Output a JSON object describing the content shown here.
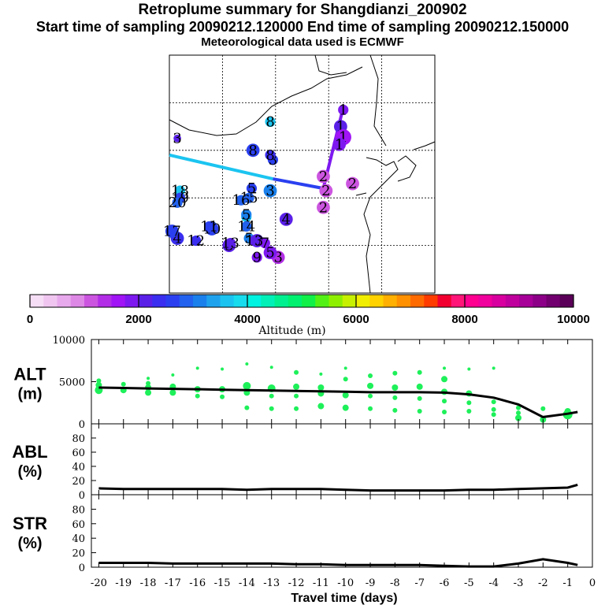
{
  "header": {
    "title": "Retroplume summary for Shangdianzi_200902",
    "sampling": "Start time of sampling 20090212.120000     End time of sampling 20090212.150000",
    "met": "Meteorological data used is ECMWF"
  },
  "colors": {
    "palette": [
      "#f6def6",
      "#f0c6f0",
      "#e8a9ec",
      "#de88e6",
      "#cc55e0",
      "#b22ee6",
      "#a014f5",
      "#7d19f0",
      "#5a20e8",
      "#3a2ef0",
      "#2a40f0",
      "#2262ee",
      "#1a80ec",
      "#1fa2ee",
      "#1bc4f0",
      "#17dced",
      "#00f2e0",
      "#00f0b8",
      "#00f090",
      "#00f070",
      "#10f048",
      "#52f014",
      "#8ef000",
      "#c6f000",
      "#f2ee00",
      "#ffd200",
      "#ffb000",
      "#ff9000",
      "#ff6a00",
      "#ff3c00",
      "#f20030",
      "#ff1478",
      "#ff0090",
      "#f0009c",
      "#d8009e",
      "#c0009c",
      "#a60098",
      "#8c0088",
      "#72006e",
      "#5a0058"
    ],
    "scatter": "#1ef05a",
    "line": "#000000"
  },
  "chart_data": [
    {
      "type": "map",
      "name": "retroplume-map",
      "note": "Plume centroid positions labelled by travel day, colored by altitude (m)",
      "grid_rows": 5,
      "grid_cols": 5,
      "points": [
        {
          "label": "1",
          "lon": 0.655,
          "lat": 0.77,
          "alt": 1900,
          "size": 2
        },
        {
          "label": "1",
          "lon": 0.645,
          "lat": 0.7,
          "alt": 2200,
          "size": 3
        },
        {
          "label": "1",
          "lon": 0.655,
          "lat": 0.655,
          "alt": 1700,
          "size": 4
        },
        {
          "label": "1",
          "lon": 0.64,
          "lat": 0.625,
          "alt": 1800,
          "size": 3
        },
        {
          "label": "2",
          "lon": 0.58,
          "lat": 0.49,
          "alt": 1200,
          "size": 3
        },
        {
          "label": "2",
          "lon": 0.69,
          "lat": 0.46,
          "alt": 1100,
          "size": 3
        },
        {
          "label": "2",
          "lon": 0.59,
          "lat": 0.43,
          "alt": 1000,
          "size": 3
        },
        {
          "label": "2",
          "lon": 0.58,
          "lat": 0.36,
          "alt": 1200,
          "size": 3
        },
        {
          "label": "3",
          "lon": 0.38,
          "lat": 0.43,
          "alt": 3000,
          "size": 3
        },
        {
          "label": "3",
          "lon": 0.39,
          "lat": 0.56,
          "alt": 2500,
          "size": 2
        },
        {
          "label": "3",
          "lon": 0.41,
          "lat": 0.15,
          "alt": 1300,
          "size": 3
        },
        {
          "label": "3",
          "lon": 0.03,
          "lat": 0.65,
          "alt": 2000,
          "size": 1
        },
        {
          "label": "3",
          "lon": 0.225,
          "lat": 0.2,
          "alt": 2000,
          "size": 3
        },
        {
          "label": "4",
          "lon": 0.44,
          "lat": 0.31,
          "alt": 2100,
          "size": 3
        },
        {
          "label": "4",
          "lon": 0.29,
          "lat": 0.32,
          "alt": 3500,
          "size": 2
        },
        {
          "label": "4",
          "lon": 0.03,
          "lat": 0.23,
          "alt": 2400,
          "size": 3
        },
        {
          "label": "5",
          "lon": 0.29,
          "lat": 0.33,
          "alt": 3200,
          "size": 2
        },
        {
          "label": "5",
          "lon": 0.3,
          "lat": 0.23,
          "alt": 3000,
          "size": 2
        },
        {
          "label": "5",
          "lon": 0.38,
          "lat": 0.17,
          "alt": 1900,
          "size": 3
        },
        {
          "label": "5",
          "lon": 0.31,
          "lat": 0.44,
          "alt": 2600,
          "size": 2
        },
        {
          "label": "6",
          "lon": 0.33,
          "lat": 0.22,
          "alt": 2000,
          "size": 3
        },
        {
          "label": "7",
          "lon": 0.36,
          "lat": 0.21,
          "alt": 1800,
          "size": 2
        },
        {
          "label": "8",
          "lon": 0.38,
          "lat": 0.58,
          "alt": 2300,
          "size": 2
        },
        {
          "label": "8",
          "lon": 0.315,
          "lat": 0.6,
          "alt": 2700,
          "size": 3
        },
        {
          "label": "8",
          "lon": 0.38,
          "lat": 0.72,
          "alt": 3600,
          "size": 2
        },
        {
          "label": "9",
          "lon": 0.33,
          "lat": 0.15,
          "alt": 1900,
          "size": 2
        },
        {
          "label": "9",
          "lon": 0.16,
          "lat": 0.28,
          "alt": 2800,
          "size": 2
        },
        {
          "label": "10",
          "lon": 0.16,
          "lat": 0.27,
          "alt": 2600,
          "size": 3
        },
        {
          "label": "11",
          "lon": 0.15,
          "lat": 0.28,
          "alt": 2700,
          "size": 2
        },
        {
          "label": "12",
          "lon": 0.1,
          "lat": 0.22,
          "alt": 2300,
          "size": 2
        },
        {
          "label": "13",
          "lon": 0.32,
          "lat": 0.22,
          "alt": 2000,
          "size": 2
        },
        {
          "label": "13",
          "lon": 0.23,
          "lat": 0.21,
          "alt": 2100,
          "size": 2
        },
        {
          "label": "14",
          "lon": 0.29,
          "lat": 0.28,
          "alt": 2800,
          "size": 2
        },
        {
          "label": "15",
          "lon": 0.3,
          "lat": 0.4,
          "alt": 2900,
          "size": 2
        },
        {
          "label": "16",
          "lon": 0.27,
          "lat": 0.39,
          "alt": 2800,
          "size": 2
        },
        {
          "label": "17",
          "lon": 0.01,
          "lat": 0.26,
          "alt": 2500,
          "size": 3
        },
        {
          "label": "18",
          "lon": 0.04,
          "lat": 0.43,
          "alt": 3700,
          "size": 2
        },
        {
          "label": "19",
          "lon": 0.04,
          "lat": 0.4,
          "alt": 2600,
          "size": 2
        },
        {
          "label": "20",
          "lon": 0.03,
          "lat": 0.38,
          "alt": 2800,
          "size": 2
        }
      ],
      "path": [
        {
          "lon": 0.655,
          "lat": 0.78,
          "alt": 1500
        },
        {
          "lon": 0.58,
          "lat": 0.44,
          "alt": 2000
        },
        {
          "lon": 0.39,
          "lat": 0.48,
          "alt": 3000
        },
        {
          "lon": 0.0,
          "lat": 0.58,
          "alt": 4000
        }
      ]
    },
    {
      "type": "colorbar",
      "name": "altitude-colorbar",
      "min": 0,
      "max": 10000,
      "steps": 40,
      "tick_labels": [
        "0",
        "2000",
        "4000",
        "6000",
        "8000",
        "10000"
      ],
      "label": "Altitude (m)"
    },
    {
      "type": "scatter+line",
      "name": "alt-panel",
      "ylabel": "ALT\n(m)",
      "ylim": [
        0,
        10000
      ],
      "yticks": [
        "0",
        "5000",
        "10000"
      ],
      "x": [
        -20,
        -19,
        -18,
        -17,
        -16,
        -15,
        -14,
        -13,
        -12,
        -11,
        -10,
        -9,
        -8,
        -7,
        -6,
        -5,
        -4,
        -3,
        -2,
        -1
      ],
      "line": {
        "x": [
          -20,
          -19,
          -18,
          -17,
          -16,
          -15,
          -14,
          -13,
          -12,
          -11,
          -10,
          -9,
          -8,
          -7,
          -6,
          -5,
          -4,
          -3,
          -2,
          -1,
          -0.6
        ],
        "y": [
          4300,
          4250,
          4200,
          4150,
          4100,
          4050,
          4000,
          3950,
          3900,
          3850,
          3800,
          3750,
          3750,
          3750,
          3700,
          3500,
          3100,
          2300,
          800,
          1200,
          1400
        ]
      },
      "scatter": [
        [
          -20,
          4000,
          5
        ],
        [
          -20,
          4600,
          4
        ],
        [
          -20,
          5100,
          3
        ],
        [
          -19,
          4000,
          4
        ],
        [
          -19,
          4700,
          3
        ],
        [
          -18,
          3700,
          4
        ],
        [
          -18,
          4300,
          4
        ],
        [
          -18,
          4800,
          3
        ],
        [
          -18,
          5400,
          2
        ],
        [
          -17,
          3700,
          4
        ],
        [
          -17,
          4400,
          4
        ],
        [
          -17,
          5800,
          2
        ],
        [
          -16,
          3300,
          3
        ],
        [
          -16,
          4100,
          4
        ],
        [
          -16,
          6600,
          2
        ],
        [
          -15,
          3200,
          3
        ],
        [
          -15,
          4100,
          4
        ],
        [
          -15,
          6500,
          2
        ],
        [
          -14,
          1900,
          3
        ],
        [
          -14,
          3700,
          4
        ],
        [
          -14,
          4500,
          5
        ],
        [
          -14,
          7100,
          2
        ],
        [
          -13,
          1800,
          3
        ],
        [
          -13,
          3300,
          3
        ],
        [
          -13,
          4200,
          5
        ],
        [
          -13,
          6700,
          2
        ],
        [
          -12,
          1800,
          3
        ],
        [
          -12,
          3300,
          3
        ],
        [
          -12,
          4400,
          4
        ],
        [
          -12,
          6100,
          3
        ],
        [
          -11,
          2100,
          4
        ],
        [
          -11,
          3600,
          4
        ],
        [
          -11,
          4300,
          4
        ],
        [
          -11,
          5900,
          2
        ],
        [
          -10,
          1900,
          4
        ],
        [
          -10,
          3400,
          4
        ],
        [
          -10,
          5300,
          3
        ],
        [
          -10,
          6600,
          2
        ],
        [
          -9,
          1800,
          3
        ],
        [
          -9,
          3300,
          3
        ],
        [
          -9,
          4500,
          4
        ],
        [
          -9,
          5700,
          3
        ],
        [
          -8,
          1600,
          3
        ],
        [
          -8,
          3100,
          3
        ],
        [
          -8,
          4300,
          4
        ],
        [
          -8,
          6000,
          3
        ],
        [
          -7,
          1500,
          3
        ],
        [
          -7,
          3000,
          3
        ],
        [
          -7,
          4400,
          4
        ],
        [
          -7,
          6100,
          3
        ],
        [
          -6,
          1400,
          3
        ],
        [
          -6,
          2700,
          3
        ],
        [
          -6,
          3800,
          4
        ],
        [
          -6,
          5300,
          4
        ],
        [
          -6,
          6600,
          2
        ],
        [
          -5,
          1500,
          3
        ],
        [
          -5,
          2500,
          3
        ],
        [
          -5,
          3600,
          4
        ],
        [
          -5,
          6500,
          2
        ],
        [
          -4,
          1100,
          3
        ],
        [
          -4,
          1700,
          3
        ],
        [
          -4,
          2600,
          3
        ],
        [
          -4,
          6600,
          2
        ],
        [
          -3,
          700,
          4
        ],
        [
          -3,
          1300,
          3
        ],
        [
          -3,
          1900,
          3
        ],
        [
          -2,
          500,
          4
        ],
        [
          -2,
          1800,
          3
        ],
        [
          -1,
          1100,
          6
        ],
        [
          -1,
          1500,
          4
        ]
      ]
    },
    {
      "type": "line",
      "name": "abl-panel",
      "ylabel": "ABL\n(%)",
      "ylim": [
        0,
        100
      ],
      "yticks": [
        "0",
        "20",
        "40",
        "60",
        "80"
      ],
      "x": [
        -20,
        -19,
        -18,
        -17,
        -16,
        -15,
        -14,
        -13,
        -12,
        -11,
        -10,
        -9,
        -8,
        -7,
        -6,
        -5,
        -4,
        -3,
        -2,
        -1,
        -0.6
      ],
      "y": [
        9,
        8,
        8,
        8,
        8,
        8,
        7,
        8,
        8,
        8,
        7,
        6,
        6,
        6,
        6,
        7,
        7,
        8,
        9,
        10,
        14
      ]
    },
    {
      "type": "line",
      "name": "str-panel",
      "ylabel": "STR\n(%)",
      "ylim": [
        0,
        100
      ],
      "yticks": [
        "0",
        "20",
        "40",
        "60",
        "80"
      ],
      "x": [
        -20,
        -19,
        -18,
        -17,
        -16,
        -15,
        -14,
        -13,
        -12,
        -11,
        -10,
        -9,
        -8,
        -7,
        -6,
        -5,
        -4,
        -3,
        -2,
        -1,
        -0.6
      ],
      "y": [
        6,
        6,
        6,
        5,
        5,
        5,
        5,
        5,
        4,
        4,
        3,
        3,
        3,
        3,
        2,
        1,
        1,
        5,
        11,
        6,
        3
      ],
      "xlabel": "Travel time (days)",
      "xticks": [
        "-20",
        "-19",
        "-18",
        "-17",
        "-16",
        "-15",
        "-14",
        "-13",
        "-12",
        "-11",
        "-10",
        "-9",
        "-8",
        "-7",
        "-6",
        "-5",
        "-4",
        "-3",
        "-2",
        "-1",
        "0"
      ]
    }
  ]
}
